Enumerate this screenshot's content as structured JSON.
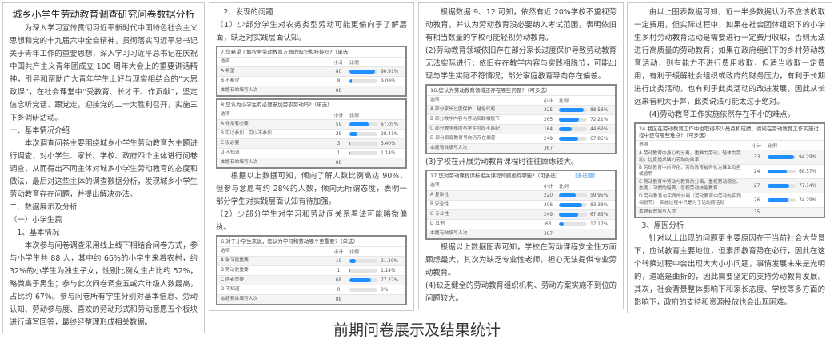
{
  "caption": "前期问卷展示及结果统计",
  "pages": [
    {
      "blocks": [
        {
          "type": "title",
          "text": "城乡小学生劳动教育调查研究问卷数据分析"
        },
        {
          "type": "p",
          "text": "为深入学习宣传贯彻习近平新时代中国特色社会主义思想和党的十九届六中全会精神，贯彻落实习近平总书记关于青年工作的重要思想，深入学习习近平总书记在庆祝中国共产主义青年团成立 100 周年大会上的重要讲话精神，引导和帮助广大青年学生上好与现实相结合的“大思政课”，在社会课堂中“受教育、长才干、作贡献”，坚定信念听党话、跟党走，迎接党的二十大胜利召开，实施三下乡调研活动。"
        },
        {
          "type": "h",
          "text": "一、基本情况介绍"
        },
        {
          "type": "p",
          "text": "本次调查问卷主要围绕城乡小学生劳动教育为主题进行调查，对小学生、家长、学校、政府四个主体进行问卷调查，从而得出不同主体对城乡小学生劳动教育的态度和做法，最后对这些主体的调查数据分析，发现城乡小学生劳动教育存在问题，并提出解决办法。"
        },
        {
          "type": "h",
          "text": "二、数据展示及分析"
        },
        {
          "type": "h",
          "text": "（一）小学生篇"
        },
        {
          "type": "h",
          "text": "　1、基本情况"
        },
        {
          "type": "p",
          "text": "本次参与问卷调查采用线上线下相结合问卷方式，参与小学生共 88 人，其中约 66%的小学生来着农村，约 32%的小学生为独生子女，性别比例女生占比约 52%，略微高于男生；参与此次问卷调查五或六年级人数最高，占比约 67%。参与问卷所有学生分别对基本信息、劳动认知、劳动参与度、喜欢的劳动形式和劳动意愿五个板块进行填写回答，最终经整理形成相关数据。"
        }
      ]
    },
    {
      "blocks": [
        {
          "type": "h",
          "text": "　2、发现的问题"
        },
        {
          "type": "pn",
          "text": "（1）少部分学生对农务类型劳动可能更偏向于了解层面，缺乏对实践层面认知。"
        },
        {
          "type": "table",
          "title": "7.您希望了解农务劳动教育方面的知识和技能吗?（单选）",
          "header": [
            "选项",
            "小计",
            "比例"
          ],
          "rows": [
            {
              "label": "A 希望",
              "count": "80",
              "pct": 90.91
            },
            {
              "label": "B 不希望",
              "count": "8",
              "pct": 9.09
            }
          ],
          "total_label": "本题有效填写人次",
          "total": "88"
        },
        {
          "type": "table",
          "title": "8.您认为小学生有必要参加劳农劳动吗?（单选）",
          "header": [
            "选项",
            "小计",
            "比例"
          ],
          "rows": [
            {
              "label": "A 非常有必要",
              "count": "59",
              "pct": 67.05
            },
            {
              "label": "B 可以参加，可以不参加",
              "count": "25",
              "pct": 28.41
            },
            {
              "label": "C 没必要",
              "count": "3",
              "pct": 3.4
            },
            {
              "label": "D 不知道",
              "count": "1",
              "pct": 1.14
            }
          ],
          "total_label": "本题有效填写人次",
          "total": "88"
        },
        {
          "type": "p",
          "text": "根据以上数据可知，倾向了解人数比例高达 90%，但参与意愿有约 28%的人数，倾向无所谓态度，表明一部分学生对实践层面认知有待加强。"
        },
        {
          "type": "pn",
          "text": "（2）少部分学生对学习和劳动间关系看法可能略微偏执。"
        },
        {
          "type": "table",
          "title": "6.对于小学生来说，您认为学习和劳动哪个更重要?（单选）",
          "header": [
            "选项",
            "小计",
            "比例"
          ],
          "rows": [
            {
              "label": "A 学习更重要",
              "count": "19",
              "pct": 21.59
            },
            {
              "label": "B 劳动更重要",
              "count": "1",
              "pct": 1.14
            },
            {
              "label": "C 两者重要",
              "count": "68",
              "pct": 77.27
            },
            {
              "label": "D 不知道",
              "count": "0",
              "pct": 0
            }
          ],
          "total_label": "本题有效填写人次",
          "total": "88"
        }
      ]
    },
    {
      "blocks": [
        {
          "type": "p",
          "text": "根据数据 9、12 可知，依然有近 20%学校不重视劳动教育，并认为劳动教育没必要纳入考试范围，表明依旧有相当数量的学校可能轻视劳动教育。"
        },
        {
          "type": "pn",
          "text": "(2)劳动教育领域依旧存在部分家长过度保护导致劳动教育无法实际进行；依旧存在教学内容与实践相脱节，可能出现与学生实际不符情况；部分家庭教育导向存在偏差。"
        },
        {
          "type": "table",
          "title": "16.您认为劳动教育领域还存在哪些问题?（可多选）",
          "header": [
            "选项",
            "小计",
            "比例"
          ],
          "rows": [
            {
              "label": "A 部分家长过度保护、越俎代庖",
              "count": "325",
              "pct": 88.56
            },
            {
              "label": "B 部分教学内容与劳动实践相脱节",
              "count": "265",
              "pct": 72.21
            },
            {
              "label": "C 部分教学难度与学生阶段不匹配",
              "count": "164",
              "pct": 44.69
            },
            {
              "label": "D 部分家庭教育导向仍存在偏差",
              "count": "249",
              "pct": 67.85
            }
          ],
          "total_label": "本题有效填写人次",
          "total": "367"
        },
        {
          "type": "pn",
          "text": "(3)学校在开展劳动教育课程时往往顾虑较大。"
        },
        {
          "type": "table",
          "title": "17.您对劳动课程课标相关课程的顾虑有哪些?（可多选）",
          "link": "[多选题]",
          "header": [
            "选项",
            "小计",
            "比例"
          ],
          "rows": [
            {
              "label": "A 复杂性",
              "count": "220",
              "pct": 59.95
            },
            {
              "label": "B 安全性",
              "count": "306",
              "pct": 83.38
            },
            {
              "label": "C 专业性",
              "count": "249",
              "pct": 67.85
            },
            {
              "label": "D 其他",
              "count": "63",
              "pct": 17.17
            }
          ],
          "total_label": "本题有效填写人次",
          "total": "367"
        },
        {
          "type": "p",
          "text": "根据以上数据图表可知，学校在劳动课程安全性方面顾虑最大，其次为缺乏专业性老师，担心无法提供专业劳动教育。"
        },
        {
          "type": "pn",
          "text": "(4)缺乏健全的劳动教育组织机构、劳动方案实施不到位的问题较大。"
        }
      ]
    },
    {
      "blocks": [
        {
          "type": "p",
          "text": "由以上图表数据可知，近一半多数据认为不应该收取一定费用，但实际过程中，如果在社会团体组织下的小学生乡村劳动教育活动是需要进行一定费用收取，否则无法进行高质量的劳动教育；如果在政府组织下的乡村劳动教育活动，则有能力不进行费用收取，但适当收取一定费用，有利于缓解社会组织或政府的财务压力，有利于长期进行此类活动，也有利于此类活动的改进发展，因此从长远来看利大于弊，此类说法可能太过于绝对。"
        },
        {
          "type": "p",
          "text": "(4)劳动教育工作实施依然存在不小的难点。"
        },
        {
          "type": "table",
          "title": "24.我区在劳动教育工作中也取得不少亮点和成绩，请问在劳动教育工作实施过程中还有哪些难点?（可多选）",
          "header": [
            "选项",
            "小计",
            "比例"
          ],
          "rows": [
            {
              "label": "A 劳动教育中身心的分离，重脑力劳动，轻体力劳动，过度追求脑力劳动的效率",
              "count": "33",
              "pct": 94.29
            },
            {
              "label": "B 劳动教育中的异化，劳动教育被异化为课业负担或惩罚",
              "count": "24",
              "pct": 68.57
            },
            {
              "label": "C 劳动教育中劳动与教育的分离，重视劳动观念、态度、习惯的培养，忽视劳动技能教育",
              "count": "27",
              "pct": 77.14
            },
            {
              "label": "D 劳动教育与实践的分离（劳动教育中劳动与实践相脱节），实施过程中只是为了活动而活动",
              "count": "26",
              "pct": 74.29
            }
          ],
          "total_label": "本题有效填写人次",
          "total": "35"
        },
        {
          "type": "h",
          "text": "　3、原因分析"
        },
        {
          "type": "p",
          "text": "针对以上出现的问题更主要原因在于当前社会大背景下，应试教育主要地位，但素质教育势在必行，因此在这个转换过程中会出现大大小小问题，事情发展未来是光明的，道路是曲折的，因此需要坚定的支持劳动教育发展。其次，社会背景整体影响下和家长态度、学校等多方面的影响下，政府的支持和资源投放也会出现困难。"
        }
      ]
    }
  ],
  "colors": {
    "bar_fill": "#1e90ff",
    "bar_track": "#e3e3e3",
    "link": "#3a8ee6"
  }
}
